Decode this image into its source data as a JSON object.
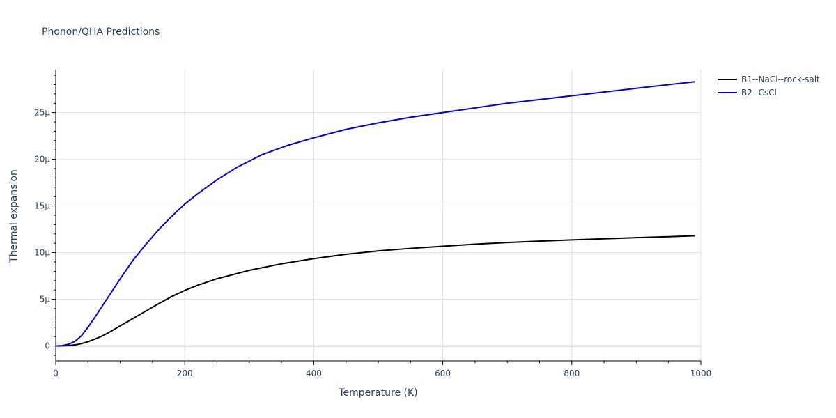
{
  "chart_data": {
    "type": "line",
    "title": "Phonon/QHA Predictions",
    "xlabel": "Temperature (K)",
    "ylabel": "Thermal expansion",
    "xlim": [
      0,
      1000
    ],
    "ylim": [
      -1.6,
      29.6
    ],
    "x_ticks": [
      0,
      200,
      400,
      600,
      800,
      1000
    ],
    "x_tick_labels": [
      "0",
      "200",
      "400",
      "600",
      "800",
      "1000"
    ],
    "y_ticks": [
      0,
      5,
      10,
      15,
      20,
      25
    ],
    "y_tick_labels": [
      "0",
      "5μ",
      "10μ",
      "15μ",
      "20μ",
      "25μ"
    ],
    "grid": true,
    "legend_position": "top-right",
    "series": [
      {
        "name": "B1--NaCl--rock-salt",
        "color": "#000000",
        "x": [
          0,
          10,
          20,
          30,
          40,
          50,
          60,
          70,
          80,
          100,
          120,
          140,
          160,
          180,
          200,
          220,
          250,
          300,
          350,
          400,
          450,
          500,
          550,
          600,
          650,
          700,
          750,
          800,
          850,
          900,
          950,
          990
        ],
        "y": [
          0,
          0.01,
          0.04,
          0.12,
          0.25,
          0.45,
          0.72,
          1.0,
          1.35,
          2.15,
          2.95,
          3.75,
          4.55,
          5.3,
          5.95,
          6.5,
          7.2,
          8.1,
          8.8,
          9.35,
          9.82,
          10.18,
          10.45,
          10.68,
          10.9,
          11.08,
          11.23,
          11.36,
          11.48,
          11.6,
          11.7,
          11.8
        ]
      },
      {
        "name": "B2--CsCl",
        "color": "#0000dd",
        "x": [
          0,
          10,
          20,
          30,
          40,
          50,
          60,
          80,
          100,
          120,
          140,
          160,
          180,
          200,
          220,
          250,
          280,
          320,
          360,
          400,
          450,
          500,
          550,
          600,
          650,
          700,
          750,
          800,
          850,
          900,
          950,
          990
        ],
        "y": [
          0,
          0.03,
          0.18,
          0.5,
          1.1,
          2.0,
          3.0,
          5.1,
          7.2,
          9.2,
          10.9,
          12.5,
          13.9,
          15.2,
          16.3,
          17.8,
          19.1,
          20.5,
          21.5,
          22.3,
          23.2,
          23.9,
          24.5,
          25.0,
          25.5,
          26.0,
          26.4,
          26.8,
          27.2,
          27.6,
          28.0,
          28.3
        ]
      }
    ]
  }
}
